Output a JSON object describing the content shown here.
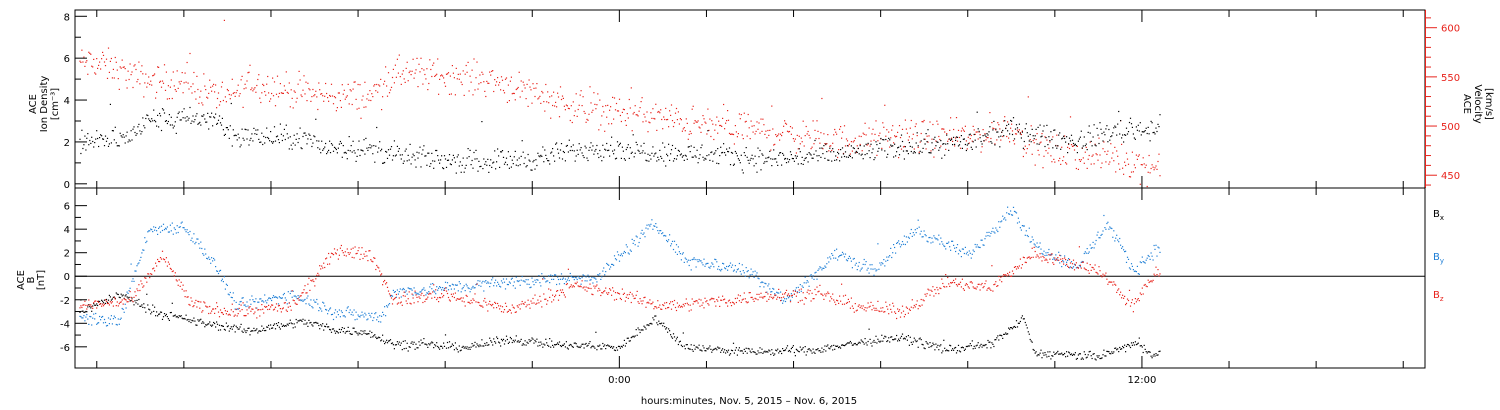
{
  "chart_data": [
    {
      "type": "scatter",
      "panel": "top",
      "ylabel_left": [
        "ACE",
        "Ion Density",
        "[cm⁻³]"
      ],
      "ylabel_right": [
        "ACE",
        "Velocity",
        "[km/s]"
      ],
      "left_axis": {
        "range": [
          -0.2,
          8.3
        ],
        "ticks": [
          0,
          2,
          4,
          6,
          8
        ],
        "color": "#000000"
      },
      "right_axis": {
        "range": [
          437,
          618
        ],
        "ticks": [
          450,
          500,
          550,
          600
        ],
        "color": "#e8231c"
      },
      "x_range_hours": [
        -12.5,
        18.5
      ],
      "data_end_hour": 12.4,
      "series": [
        {
          "name": "",
          "axis": "left",
          "color": "#000000",
          "trend": [
            [
              -12.4,
              2.0
            ],
            [
              -11.3,
              2.2
            ],
            [
              -10.8,
              3.1
            ],
            [
              -9.3,
              3.1
            ],
            [
              -8.8,
              2.3
            ],
            [
              -7.3,
              2.2
            ],
            [
              -6.8,
              1.8
            ],
            [
              -5.8,
              1.7
            ],
            [
              -4.9,
              1.3
            ],
            [
              -3.5,
              1.1
            ],
            [
              -2.0,
              1.2
            ],
            [
              -0.5,
              1.8
            ],
            [
              0.5,
              1.6
            ],
            [
              2.0,
              1.4
            ],
            [
              3.5,
              1.2
            ],
            [
              5.0,
              1.4
            ],
            [
              6.5,
              1.8
            ],
            [
              8.0,
              2.0
            ],
            [
              9.0,
              2.6
            ],
            [
              10.5,
              2.0
            ],
            [
              11.2,
              2.5
            ],
            [
              12.3,
              2.7
            ]
          ],
          "spread": 0.45
        },
        {
          "name": "",
          "axis": "right",
          "color": "#e8231c",
          "trend": [
            [
              -12.4,
              565
            ],
            [
              -11.8,
              562
            ],
            [
              -11.0,
              548
            ],
            [
              -9.8,
              542
            ],
            [
              -9.0,
              528
            ],
            [
              -8.5,
              545
            ],
            [
              -7.0,
              532
            ],
            [
              -5.8,
              530
            ],
            [
              -5.0,
              555
            ],
            [
              -3.0,
              548
            ],
            [
              -2.0,
              535
            ],
            [
              -1.0,
              520
            ],
            [
              0.5,
              512
            ],
            [
              2.0,
              500
            ],
            [
              3.5,
              495
            ],
            [
              5.0,
              485
            ],
            [
              6.5,
              490
            ],
            [
              8.0,
              488
            ],
            [
              9.0,
              500
            ],
            [
              9.5,
              478
            ],
            [
              10.5,
              472
            ],
            [
              11.5,
              468
            ],
            [
              12.3,
              458
            ]
          ],
          "spread": 14
        }
      ]
    },
    {
      "type": "scatter",
      "panel": "bottom",
      "ylabel_left": [
        "ACE",
        "B",
        "[nT]"
      ],
      "left_axis": {
        "range": [
          -7.8,
          7.5
        ],
        "ticks": [
          -6,
          -4,
          -2,
          0,
          2,
          4,
          6
        ],
        "color": "#000000"
      },
      "zero_line": true,
      "x_range_hours": [
        -12.5,
        18.5
      ],
      "data_end_hour": 12.4,
      "series": [
        {
          "name": "B",
          "subscript": "x",
          "color": "#000000",
          "trend": [
            [
              -12.4,
              -3.0
            ],
            [
              -11.5,
              -1.5
            ],
            [
              -10.5,
              -3.2
            ],
            [
              -9.5,
              -4.0
            ],
            [
              -8.5,
              -4.6
            ],
            [
              -7.3,
              -3.8
            ],
            [
              -6.5,
              -4.5
            ],
            [
              -5.7,
              -4.8
            ],
            [
              -5.2,
              -5.7
            ],
            [
              -3.5,
              -6.0
            ],
            [
              -2.5,
              -5.3
            ],
            [
              -1.5,
              -5.8
            ],
            [
              0.0,
              -6.0
            ],
            [
              0.8,
              -3.5
            ],
            [
              1.5,
              -6.0
            ],
            [
              3.0,
              -6.4
            ],
            [
              4.5,
              -6.2
            ],
            [
              5.5,
              -5.6
            ],
            [
              6.5,
              -5.2
            ],
            [
              7.5,
              -6.2
            ],
            [
              8.5,
              -5.8
            ],
            [
              9.3,
              -3.5
            ],
            [
              9.5,
              -6.5
            ],
            [
              11.0,
              -6.8
            ],
            [
              11.8,
              -5.7
            ],
            [
              12.3,
              -6.6
            ]
          ],
          "spread": 0.3
        },
        {
          "name": "B",
          "subscript": "y",
          "color": "#1f7fd6",
          "trend": [
            [
              -12.4,
              -3.5
            ],
            [
              -11.5,
              -3.8
            ],
            [
              -10.8,
              4.0
            ],
            [
              -10.0,
              4.3
            ],
            [
              -9.3,
              1.0
            ],
            [
              -8.8,
              -2.5
            ],
            [
              -7.5,
              -1.5
            ],
            [
              -6.5,
              -3.0
            ],
            [
              -5.5,
              -3.5
            ],
            [
              -5.2,
              -1.3
            ],
            [
              -3.5,
              -0.8
            ],
            [
              -2.0,
              -0.3
            ],
            [
              -0.5,
              0.0
            ],
            [
              0.8,
              4.5
            ],
            [
              1.5,
              1.5
            ],
            [
              3.0,
              0.5
            ],
            [
              3.8,
              -2.0
            ],
            [
              5.0,
              2.0
            ],
            [
              5.8,
              0.5
            ],
            [
              6.8,
              4.0
            ],
            [
              8.0,
              1.8
            ],
            [
              9.0,
              5.8
            ],
            [
              9.5,
              2.8
            ],
            [
              10.5,
              0.8
            ],
            [
              11.2,
              4.5
            ],
            [
              11.8,
              0.5
            ],
            [
              12.3,
              2.3
            ]
          ],
          "spread": 0.45
        },
        {
          "name": "B",
          "subscript": "z",
          "color": "#e8231c",
          "trend": [
            [
              -12.4,
              -2.5
            ],
            [
              -11.2,
              -2.0
            ],
            [
              -10.5,
              1.8
            ],
            [
              -9.8,
              -2.5
            ],
            [
              -8.8,
              -3.0
            ],
            [
              -7.5,
              -2.5
            ],
            [
              -6.5,
              2.3
            ],
            [
              -5.7,
              1.8
            ],
            [
              -5.2,
              -2.0
            ],
            [
              -4.0,
              -1.5
            ],
            [
              -2.5,
              -2.8
            ],
            [
              -1.0,
              -0.8
            ],
            [
              0.0,
              -1.5
            ],
            [
              1.0,
              -2.5
            ],
            [
              2.5,
              -2.0
            ],
            [
              3.5,
              -1.5
            ],
            [
              4.5,
              -1.5
            ],
            [
              5.5,
              -2.5
            ],
            [
              6.5,
              -3.0
            ],
            [
              7.5,
              -0.5
            ],
            [
              8.5,
              -1.0
            ],
            [
              9.5,
              2.0
            ],
            [
              10.5,
              1.0
            ],
            [
              11.0,
              0.5
            ],
            [
              11.8,
              -2.5
            ],
            [
              12.3,
              0.3
            ]
          ],
          "spread": 0.45
        }
      ]
    }
  ],
  "x_axis": {
    "label": "hours:minutes, Nov.  5, 2015 – Nov.  6, 2015",
    "major_ticks": [
      {
        "hour": 0,
        "label": "0:00"
      },
      {
        "hour": 12,
        "label": "12:00"
      }
    ],
    "minor_ticks_every_hours": 2
  }
}
